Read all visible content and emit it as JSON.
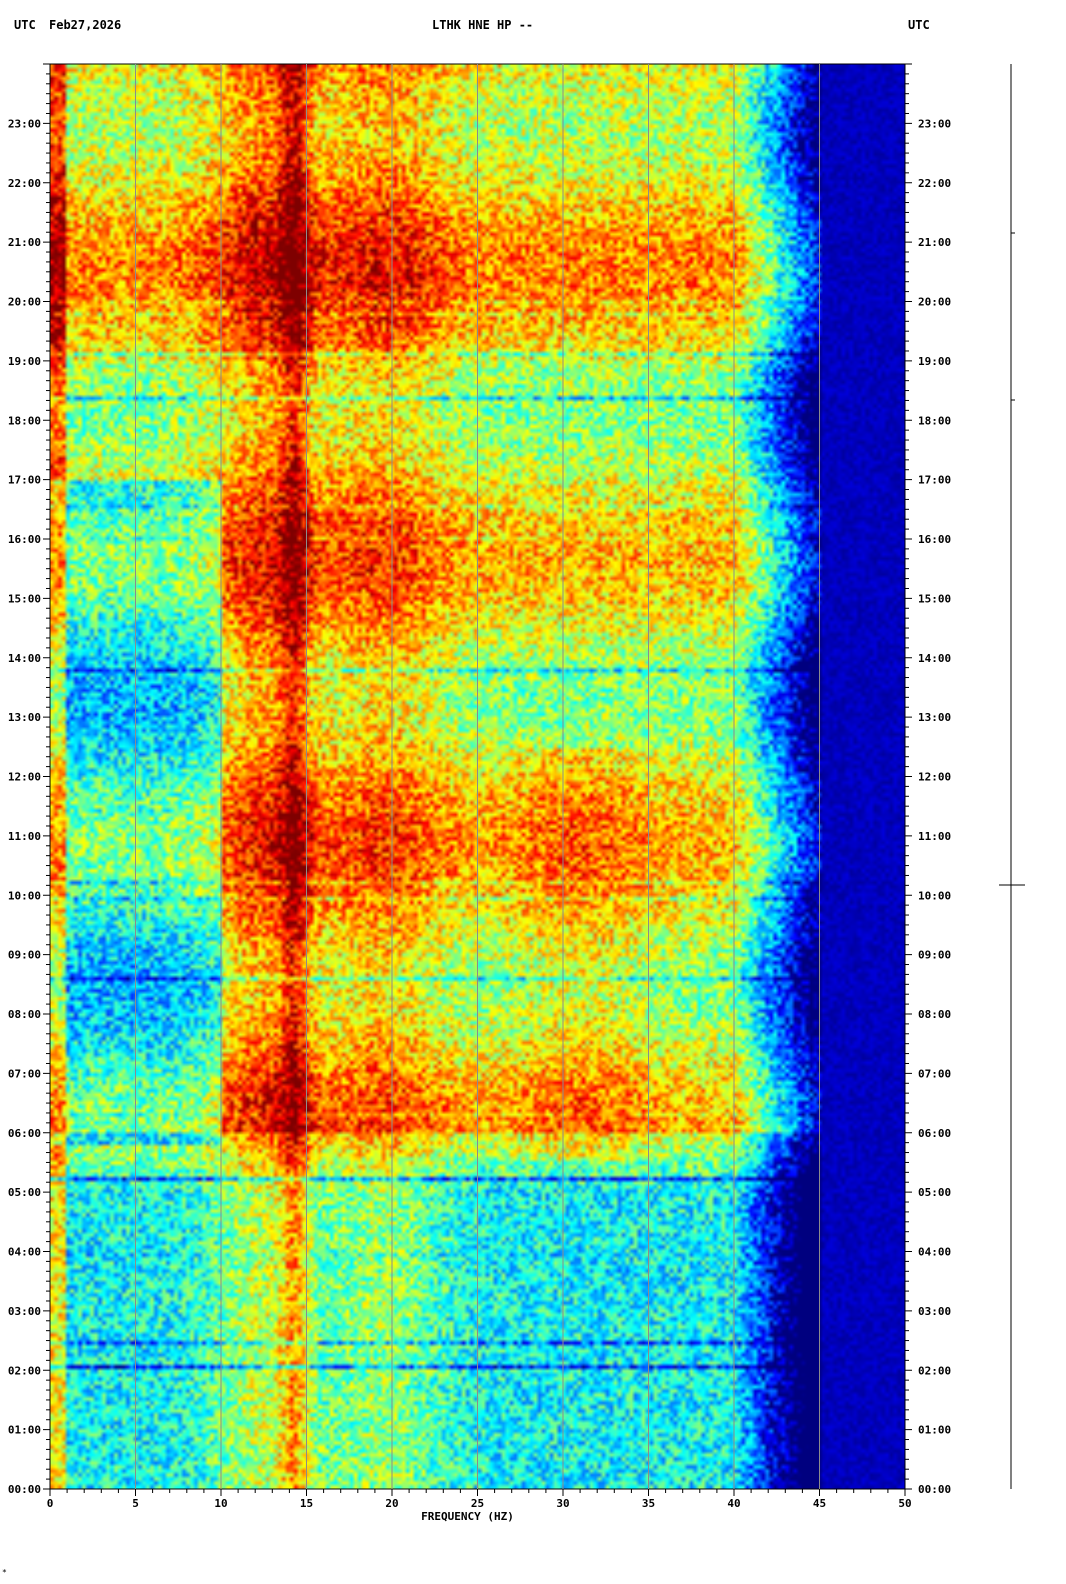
{
  "header": {
    "left_utc": "UTC",
    "date": "Feb27,2026",
    "title": "LTHK HNE HP --",
    "right_utc": "UTC"
  },
  "chart_data": {
    "type": "heatmap",
    "title": "LTHK HNE HP --",
    "xlabel": "FREQUENCY (HZ)",
    "ylabel": "UTC",
    "xlim": [
      0,
      50
    ],
    "x_ticks": [
      0,
      5,
      10,
      15,
      20,
      25,
      30,
      35,
      40,
      45,
      50
    ],
    "y_ticks": [
      "00:00",
      "01:00",
      "02:00",
      "03:00",
      "04:00",
      "05:00",
      "06:00",
      "07:00",
      "08:00",
      "09:00",
      "10:00",
      "11:00",
      "12:00",
      "13:00",
      "14:00",
      "15:00",
      "16:00",
      "17:00",
      "18:00",
      "19:00",
      "20:00",
      "21:00",
      "22:00",
      "23:00"
    ],
    "y_range_hours": [
      0,
      24
    ],
    "grid": true,
    "colormap": [
      "#00007f",
      "#0000ff",
      "#0080ff",
      "#00ffff",
      "#80ff80",
      "#ffff00",
      "#ff8000",
      "#ff0000",
      "#7f0000"
    ],
    "cutoff_hz": 43
  },
  "corner_mark": "*"
}
